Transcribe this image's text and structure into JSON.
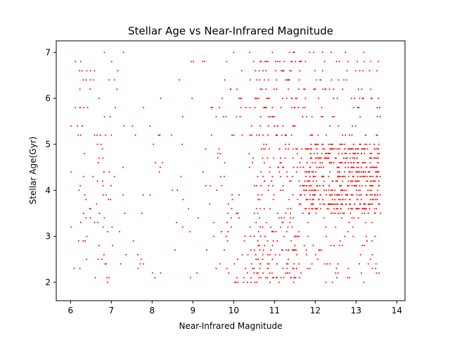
{
  "chart_data": {
    "type": "scatter",
    "title": "Stellar Age vs Near-Infrared Magnitude",
    "xlabel": "Near-Infrared Magnitude",
    "ylabel": "Stellar Age(Gyr)",
    "xlim": [
      5.65,
      14.2
    ],
    "ylim": [
      1.6,
      7.25
    ],
    "xticks": [
      6,
      7,
      8,
      9,
      10,
      11,
      12,
      13,
      14
    ],
    "yticks": [
      2,
      3,
      4,
      5,
      6,
      7
    ],
    "marker_color": "#ff0000",
    "grid": false,
    "series": [
      {
        "name": "stars",
        "note": "approximate reconstruction of the scattered points",
        "x": [],
        "y": []
      }
    ]
  }
}
